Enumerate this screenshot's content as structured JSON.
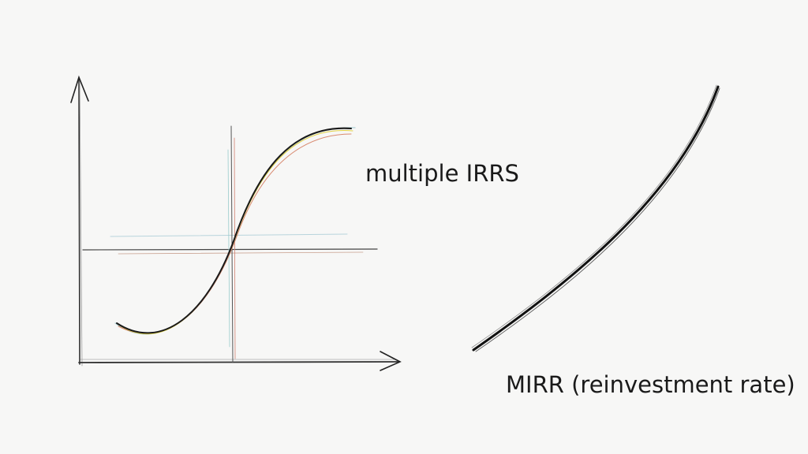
{
  "labels": {
    "left": "multiple IRRS",
    "right": "MIRR (reinvestment rate)"
  }
}
